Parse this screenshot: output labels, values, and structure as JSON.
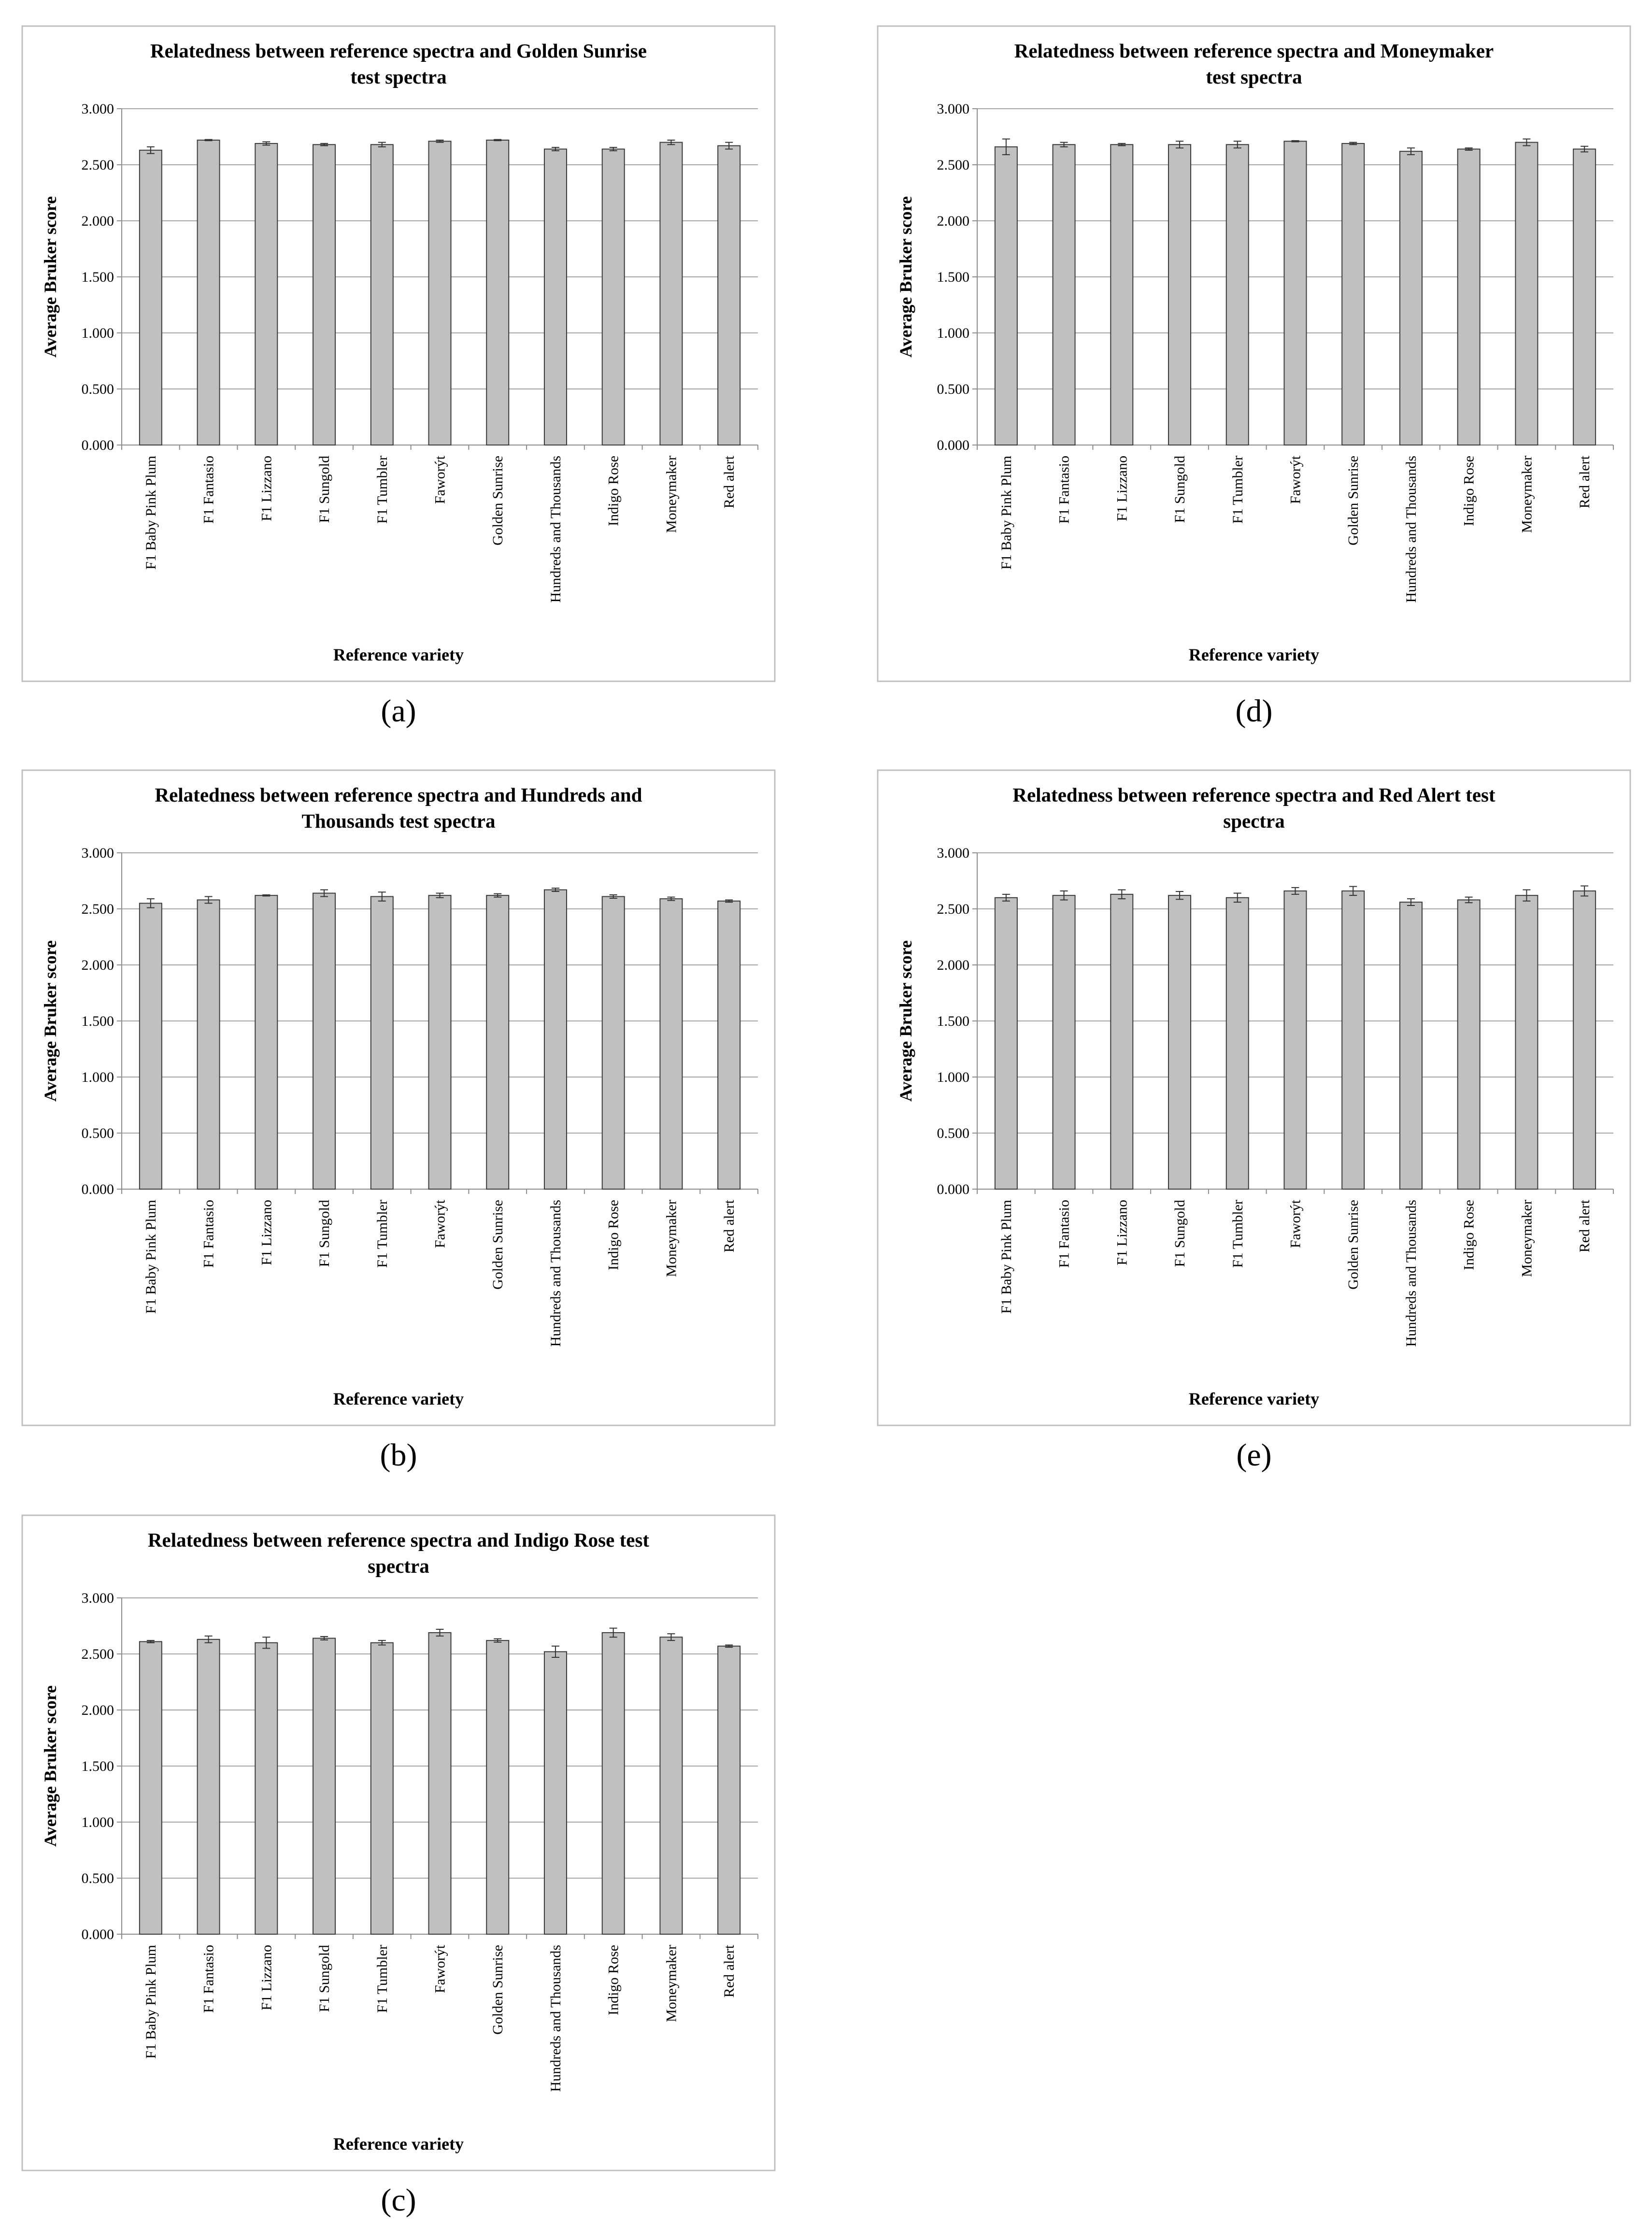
{
  "figure": {
    "xlabel": "Reference variety",
    "ylabel": "Average Bruker score"
  },
  "chart_data": [
    {
      "panel": "(a)",
      "type": "bar",
      "title_lines": [
        "Relatedness between reference spectra and Golden Sunrise",
        "test spectra"
      ],
      "xlabel": "Reference variety",
      "ylabel": "Average Bruker score",
      "ylim": [
        0,
        3.0
      ],
      "yticks": [
        "0.000",
        "0.500",
        "1.000",
        "1.500",
        "2.000",
        "2.500",
        "3.000"
      ],
      "categories": [
        "F1 Baby Pink Plum",
        "F1 Fantasio",
        "F1 Lizzano",
        "F1 Sungold",
        "F1 Tumbler",
        "Faworýt",
        "Golden Sunrise",
        "Hundreds and Thousands",
        "Indigo Rose",
        "Moneymaker",
        "Red alert"
      ],
      "values": [
        2.63,
        2.72,
        2.69,
        2.68,
        2.68,
        2.71,
        2.72,
        2.64,
        2.64,
        2.7,
        2.67
      ],
      "errors": [
        0.03,
        0.005,
        0.015,
        0.01,
        0.02,
        0.01,
        0.005,
        0.015,
        0.015,
        0.02,
        0.03
      ]
    },
    {
      "panel": "(b)",
      "type": "bar",
      "title_lines": [
        "Relatedness between reference spectra and Hundreds and",
        "Thousands test spectra"
      ],
      "xlabel": "Reference variety",
      "ylabel": "Average Bruker score",
      "ylim": [
        0,
        3.0
      ],
      "yticks": [
        "0.000",
        "0.500",
        "1.000",
        "1.500",
        "2.000",
        "2.500",
        "3.000"
      ],
      "categories": [
        "F1 Baby Pink Plum",
        "F1 Fantasio",
        "F1 Lizzano",
        "F1 Sungold",
        "F1 Tumbler",
        "Faworýt",
        "Golden Sunrise",
        "Hundreds and Thousands",
        "Indigo Rose",
        "Moneymaker",
        "Red alert"
      ],
      "values": [
        2.55,
        2.58,
        2.62,
        2.64,
        2.61,
        2.62,
        2.62,
        2.67,
        2.61,
        2.59,
        2.57
      ],
      "errors": [
        0.04,
        0.03,
        0.005,
        0.03,
        0.04,
        0.02,
        0.015,
        0.015,
        0.015,
        0.015,
        0.01
      ]
    },
    {
      "panel": "(c)",
      "type": "bar",
      "title_lines": [
        "Relatedness between reference spectra and Indigo Rose test",
        "spectra"
      ],
      "xlabel": "Reference variety",
      "ylabel": "Average Bruker score",
      "ylim": [
        0,
        3.0
      ],
      "yticks": [
        "0.000",
        "0.500",
        "1.000",
        "1.500",
        "2.000",
        "2.500",
        "3.000"
      ],
      "categories": [
        "F1 Baby Pink Plum",
        "F1 Fantasio",
        "F1 Lizzano",
        "F1 Sungold",
        "F1 Tumbler",
        "Faworýt",
        "Golden Sunrise",
        "Hundreds and Thousands",
        "Indigo Rose",
        "Moneymaker",
        "Red alert"
      ],
      "values": [
        2.61,
        2.63,
        2.6,
        2.64,
        2.6,
        2.69,
        2.62,
        2.52,
        2.69,
        2.65,
        2.57
      ],
      "errors": [
        0.01,
        0.03,
        0.05,
        0.015,
        0.02,
        0.03,
        0.015,
        0.05,
        0.04,
        0.03,
        0.01
      ]
    },
    {
      "panel": "(d)",
      "type": "bar",
      "title_lines": [
        "Relatedness between reference spectra and Moneymaker",
        "test spectra"
      ],
      "xlabel": "Reference variety",
      "ylabel": "Average Bruker score",
      "ylim": [
        0,
        3.0
      ],
      "yticks": [
        "0.000",
        "0.500",
        "1.000",
        "1.500",
        "2.000",
        "2.500",
        "3.000"
      ],
      "categories": [
        "F1 Baby Pink Plum",
        "F1 Fantasio",
        "F1 Lizzano",
        "F1 Sungold",
        "F1 Tumbler",
        "Faworýt",
        "Golden Sunrise",
        "Hundreds and Thousands",
        "Indigo Rose",
        "Moneymaker",
        "Red alert"
      ],
      "values": [
        2.66,
        2.68,
        2.68,
        2.68,
        2.68,
        2.71,
        2.69,
        2.62,
        2.64,
        2.7,
        2.64
      ],
      "errors": [
        0.07,
        0.02,
        0.01,
        0.03,
        0.03,
        0.005,
        0.01,
        0.03,
        0.01,
        0.03,
        0.025
      ]
    },
    {
      "panel": "(e)",
      "type": "bar",
      "title_lines": [
        "Relatedness between reference spectra and Red Alert test",
        "spectra"
      ],
      "xlabel": "Reference variety",
      "ylabel": "Average Bruker score",
      "ylim": [
        0,
        3.0
      ],
      "yticks": [
        "0.000",
        "0.500",
        "1.000",
        "1.500",
        "2.000",
        "2.500",
        "3.000"
      ],
      "categories": [
        "F1 Baby Pink Plum",
        "F1 Fantasio",
        "F1 Lizzano",
        "F1 Sungold",
        "F1 Tumbler",
        "Faworýt",
        "Golden Sunrise",
        "Hundreds and Thousands",
        "Indigo Rose",
        "Moneymaker",
        "Red alert"
      ],
      "values": [
        2.6,
        2.62,
        2.63,
        2.62,
        2.6,
        2.66,
        2.66,
        2.56,
        2.58,
        2.62,
        2.66
      ],
      "errors": [
        0.03,
        0.04,
        0.04,
        0.035,
        0.04,
        0.03,
        0.04,
        0.03,
        0.025,
        0.05,
        0.045
      ]
    }
  ],
  "colors": {
    "bar_fill": "#c0c0c0",
    "bar_stroke": "#3a3a3a",
    "grid": "#a6a6a6",
    "frame": "#bfbfbf",
    "axis": "#8c8c8c"
  }
}
